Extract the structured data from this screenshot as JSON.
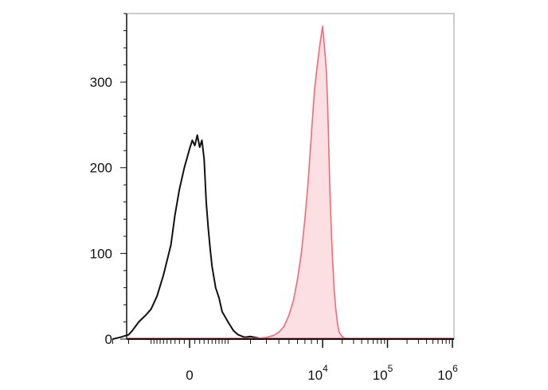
{
  "chart_data": {
    "type": "area",
    "title": "",
    "xlabel": "",
    "ylabel": "",
    "xscale": "biexponential",
    "ylim": [
      0,
      380
    ],
    "grid": false,
    "legend": "none",
    "y_ticks": [
      {
        "value": 0,
        "label": "0"
      },
      {
        "value": 100,
        "label": "100"
      },
      {
        "value": 200,
        "label": "200"
      },
      {
        "value": 300,
        "label": "300"
      }
    ],
    "x_ticks": [
      {
        "value": 0,
        "base": "0",
        "exp": ""
      },
      {
        "value": 10000,
        "base": "10",
        "exp": "4"
      },
      {
        "value": 100000,
        "base": "10",
        "exp": "5"
      },
      {
        "value": 1000000,
        "base": "10",
        "exp": "6"
      }
    ],
    "series": [
      {
        "kind": "line",
        "color": "#111111",
        "x": [
          -3000,
          -2500,
          -2000,
          -1800,
          -1500,
          -1200,
          -1000,
          -800,
          -600,
          -400,
          -300,
          -200,
          -100,
          0,
          50,
          100,
          150,
          200,
          250,
          300,
          350,
          400,
          450,
          500,
          600,
          700,
          800,
          1000,
          1200,
          1400,
          1700,
          2000,
          2500,
          3000
        ],
        "values": [
          0,
          2,
          5,
          10,
          20,
          28,
          35,
          50,
          75,
          110,
          145,
          175,
          200,
          222,
          232,
          226,
          238,
          224,
          232,
          210,
          160,
          130,
          105,
          85,
          60,
          48,
          32,
          20,
          10,
          5,
          2,
          3,
          1,
          0
        ]
      },
      {
        "kind": "area",
        "color": "#f06a78",
        "fill": "#fbdfe2",
        "x": [
          2000,
          2500,
          3000,
          3500,
          4000,
          4500,
          5000,
          5500,
          6000,
          6500,
          7000,
          7500,
          8000,
          8500,
          9000,
          9500,
          10000,
          10500,
          11000,
          11500,
          12000,
          12500,
          13000,
          14000,
          15000,
          16000,
          17000,
          18000,
          20000,
          22000,
          25000,
          30000
        ],
        "values": [
          0,
          1,
          2,
          4,
          8,
          15,
          28,
          45,
          70,
          100,
          140,
          185,
          240,
          290,
          320,
          345,
          365,
          348,
          330,
          310,
          270,
          220,
          170,
          105,
          60,
          35,
          18,
          8,
          3,
          1,
          0,
          0
        ]
      }
    ]
  }
}
